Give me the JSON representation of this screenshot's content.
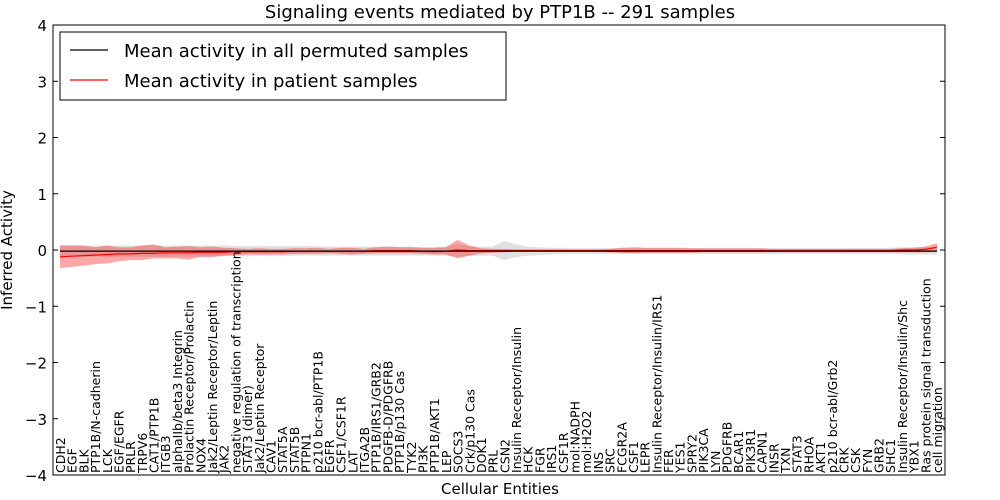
{
  "chart_data": {
    "type": "line",
    "title": "Signaling events mediated by PTP1B -- 291 samples",
    "xlabel": "Cellular Entities",
    "ylabel": "Inferred Activity",
    "ylim": [
      -4,
      4
    ],
    "yticks": [
      -4,
      -3,
      -2,
      -1,
      0,
      1,
      2,
      3,
      4
    ],
    "ytick_labels": [
      "−4",
      "−3",
      "−2",
      "−1",
      "0",
      "1",
      "2",
      "3",
      "4"
    ],
    "grid": false,
    "legend_position": "top-left",
    "categories": [
      "CDH2",
      "EGF",
      "BLK",
      "PTP1B/N-cadherin",
      "LCK",
      "EGF/EGFR",
      "PRLR",
      "TRPV6",
      "CAT1/PTP1B",
      "ITGB3",
      "alphaIIb/beta3 Integrin",
      "Prolactin Receptor/Prolactin",
      "NOX4",
      "Jak2/Leptin Receptor/Leptin",
      "JAK2",
      "negative regulation of transcription",
      "STAT3 (dimer)",
      "Jak2/Leptin Receptor",
      "CAV1",
      "STAT5A",
      "STAT5B",
      "PTPN1",
      "p210 bcr-abl/PTP1B",
      "EGFR",
      "CSF1/CSF1R",
      "LAT",
      "ITGA2B",
      "PTP1B/IRS1/GRB2",
      "PDGFB-D/PDGFRB",
      "PTP1B/p130 Cas",
      "TYK2",
      "PI3K",
      "PTP1B/AKT1",
      "LEP",
      "SOCS3",
      "Crk/p130 Cas",
      "DOK1",
      "PRL",
      "CSN2",
      "Insulin Receptor/Insulin",
      "HCK",
      "FGR",
      "IRS1",
      "CSF1R",
      "mol:NADPH",
      "mol:H2O2",
      "INS",
      "SRC",
      "FCGR2A",
      "CSF1",
      "LEPR",
      "Insulin Receptor/Insulin/IRS1",
      "FER",
      "YES1",
      "SPRY2",
      "PIK3CA",
      "LYN",
      "PDGFRB",
      "BCAR1",
      "PIK3R1",
      "CAPN1",
      "INSR",
      "TXN",
      "STAT3",
      "RHOA",
      "AKT1",
      "p210 bcr-abl/Grb2",
      "CRK",
      "CSK",
      "FYN",
      "GRB2",
      "SHC1",
      "Insulin Receptor/Insulin/Shc",
      "YBX1",
      "Ras protein signal transduction",
      "cell migration"
    ],
    "series": [
      {
        "name": "Mean activity in all permuted samples",
        "color": "#000000",
        "values": [
          -0.02,
          -0.02,
          -0.02,
          -0.02,
          -0.02,
          -0.02,
          -0.02,
          -0.02,
          -0.02,
          -0.02,
          -0.02,
          -0.02,
          -0.02,
          -0.02,
          -0.02,
          -0.02,
          -0.02,
          -0.02,
          -0.02,
          -0.02,
          -0.02,
          -0.02,
          -0.02,
          -0.02,
          -0.02,
          -0.02,
          -0.02,
          -0.02,
          -0.02,
          -0.02,
          -0.02,
          -0.02,
          -0.02,
          -0.02,
          -0.02,
          -0.02,
          -0.02,
          -0.02,
          -0.02,
          -0.02,
          -0.02,
          -0.02,
          -0.02,
          -0.02,
          -0.02,
          -0.02,
          -0.02,
          -0.02,
          -0.02,
          -0.02,
          -0.02,
          -0.02,
          -0.02,
          -0.02,
          -0.02,
          -0.02,
          -0.02,
          -0.02,
          -0.02,
          -0.02,
          -0.02,
          -0.02,
          -0.02,
          -0.02,
          -0.02,
          -0.02,
          -0.02,
          -0.02,
          -0.02,
          -0.02,
          -0.02,
          -0.02,
          -0.02,
          -0.02,
          -0.02,
          -0.02
        ],
        "band_upper": [
          0.08,
          0.08,
          0.08,
          0.08,
          0.08,
          0.08,
          0.08,
          0.08,
          0.08,
          0.08,
          0.08,
          0.08,
          0.08,
          0.08,
          0.08,
          0.07,
          0.07,
          0.07,
          0.07,
          0.07,
          0.07,
          0.07,
          0.07,
          0.06,
          0.06,
          0.06,
          0.06,
          0.06,
          0.06,
          0.06,
          0.06,
          0.05,
          0.05,
          0.06,
          0.1,
          0.07,
          0.06,
          0.06,
          0.16,
          0.1,
          0.06,
          0.05,
          0.04,
          0.04,
          0.03,
          0.03,
          0.03,
          0.03,
          0.03,
          0.03,
          0.03,
          0.03,
          0.03,
          0.03,
          0.03,
          0.03,
          0.03,
          0.03,
          0.03,
          0.03,
          0.03,
          0.03,
          0.03,
          0.03,
          0.03,
          0.03,
          0.03,
          0.03,
          0.04,
          0.04,
          0.04,
          0.04,
          0.05,
          0.05,
          0.05,
          0.05
        ],
        "band_lower": [
          -0.12,
          -0.12,
          -0.12,
          -0.12,
          -0.12,
          -0.12,
          -0.12,
          -0.12,
          -0.12,
          -0.12,
          -0.12,
          -0.12,
          -0.12,
          -0.11,
          -0.11,
          -0.11,
          -0.11,
          -0.11,
          -0.11,
          -0.11,
          -0.1,
          -0.1,
          -0.1,
          -0.1,
          -0.1,
          -0.1,
          -0.1,
          -0.1,
          -0.1,
          -0.1,
          -0.1,
          -0.1,
          -0.1,
          -0.1,
          -0.12,
          -0.11,
          -0.1,
          -0.1,
          -0.18,
          -0.13,
          -0.1,
          -0.09,
          -0.08,
          -0.07,
          -0.07,
          -0.07,
          -0.07,
          -0.07,
          -0.07,
          -0.07,
          -0.07,
          -0.07,
          -0.07,
          -0.07,
          -0.07,
          -0.07,
          -0.07,
          -0.07,
          -0.07,
          -0.07,
          -0.07,
          -0.07,
          -0.07,
          -0.07,
          -0.07,
          -0.07,
          -0.07,
          -0.07,
          -0.07,
          -0.07,
          -0.07,
          -0.07,
          -0.08,
          -0.08,
          -0.08,
          -0.08
        ]
      },
      {
        "name": "Mean activity in patient samples",
        "color": "#ff0000",
        "values": [
          -0.12,
          -0.11,
          -0.1,
          -0.09,
          -0.08,
          -0.07,
          -0.07,
          -0.06,
          -0.06,
          -0.05,
          -0.05,
          -0.05,
          -0.04,
          -0.04,
          -0.04,
          -0.03,
          -0.03,
          -0.03,
          -0.03,
          -0.03,
          -0.02,
          -0.02,
          -0.02,
          -0.02,
          -0.02,
          -0.02,
          -0.02,
          -0.01,
          -0.01,
          -0.01,
          -0.01,
          -0.02,
          -0.03,
          -0.02,
          0.0,
          -0.01,
          -0.01,
          -0.01,
          -0.01,
          -0.01,
          -0.01,
          -0.01,
          -0.01,
          -0.01,
          -0.01,
          -0.01,
          -0.01,
          -0.01,
          -0.01,
          -0.01,
          -0.01,
          -0.01,
          -0.01,
          -0.01,
          -0.01,
          -0.01,
          -0.01,
          -0.01,
          -0.01,
          -0.01,
          -0.01,
          -0.01,
          -0.01,
          -0.01,
          -0.01,
          -0.01,
          -0.01,
          -0.01,
          -0.01,
          -0.01,
          -0.01,
          -0.01,
          0.0,
          0.0,
          0.01,
          0.05
        ],
        "band_upper": [
          0.08,
          0.08,
          0.08,
          0.05,
          0.08,
          0.05,
          0.05,
          0.08,
          0.1,
          0.05,
          0.06,
          0.07,
          0.05,
          0.06,
          0.04,
          0.03,
          0.02,
          0.03,
          0.02,
          0.02,
          0.03,
          0.03,
          0.04,
          0.02,
          0.04,
          0.04,
          0.02,
          0.05,
          0.06,
          0.05,
          0.05,
          0.04,
          0.04,
          0.05,
          0.18,
          0.08,
          0.03,
          0.02,
          0.02,
          0.01,
          0.01,
          0.01,
          0.01,
          0.01,
          0.01,
          0.01,
          0.01,
          0.02,
          0.04,
          0.05,
          0.04,
          0.04,
          0.04,
          0.04,
          0.03,
          0.03,
          0.03,
          0.03,
          0.03,
          0.03,
          0.03,
          0.02,
          0.02,
          0.02,
          0.02,
          0.02,
          0.02,
          0.02,
          0.02,
          0.02,
          0.02,
          0.02,
          0.03,
          0.04,
          0.06,
          0.12
        ],
        "band_lower": [
          -0.32,
          -0.3,
          -0.28,
          -0.25,
          -0.24,
          -0.2,
          -0.18,
          -0.18,
          -0.15,
          -0.15,
          -0.15,
          -0.17,
          -0.12,
          -0.13,
          -0.1,
          -0.09,
          -0.08,
          -0.08,
          -0.08,
          -0.08,
          -0.07,
          -0.07,
          -0.07,
          -0.06,
          -0.07,
          -0.08,
          -0.07,
          -0.06,
          -0.06,
          -0.06,
          -0.06,
          -0.07,
          -0.08,
          -0.08,
          -0.15,
          -0.1,
          -0.06,
          -0.05,
          -0.04,
          -0.03,
          -0.03,
          -0.03,
          -0.03,
          -0.03,
          -0.03,
          -0.03,
          -0.03,
          -0.04,
          -0.05,
          -0.06,
          -0.05,
          -0.05,
          -0.05,
          -0.05,
          -0.05,
          -0.04,
          -0.04,
          -0.04,
          -0.04,
          -0.04,
          -0.04,
          -0.04,
          -0.04,
          -0.04,
          -0.04,
          -0.04,
          -0.04,
          -0.04,
          -0.04,
          -0.04,
          -0.04,
          -0.04,
          -0.04,
          -0.04,
          -0.04,
          -0.03
        ]
      }
    ]
  }
}
